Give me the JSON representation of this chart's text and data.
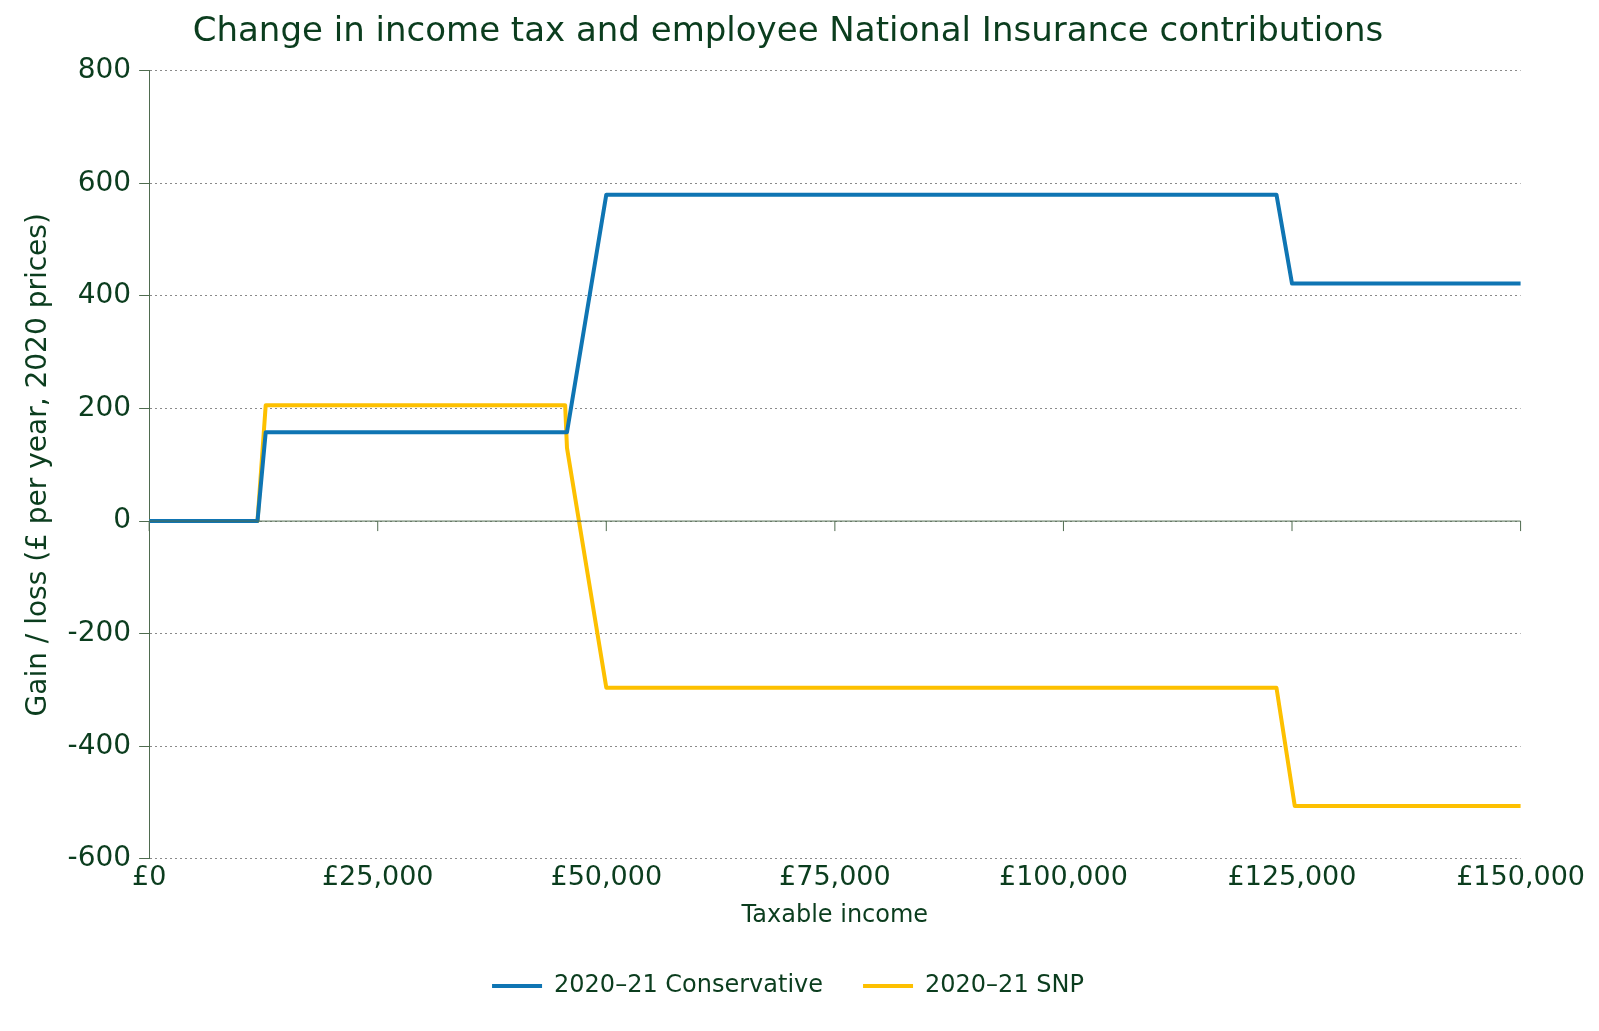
{
  "chart_data": {
    "type": "line",
    "title": "Change in income tax and employee National Insurance contributions",
    "xlabel": "Taxable income",
    "ylabel": "Gain / loss (£ per year, 2020 prices)",
    "series": [
      {
        "name": "2020–21 Conservative",
        "color": "#0f75b3",
        "x": [
          0,
          11850,
          12750,
          45700,
          50000,
          123300,
          125000,
          150000
        ],
        "values": [
          0,
          0,
          158,
          158,
          580,
          580,
          422,
          422
        ]
      },
      {
        "name": "2020–21 SNP",
        "color": "#fdc000",
        "x": [
          0,
          11850,
          12750,
          45500,
          45700,
          50000,
          123300,
          125300,
          150000
        ],
        "values": [
          0,
          0,
          206,
          206,
          130,
          -296,
          -296,
          -506,
          -506
        ]
      }
    ],
    "xlim": [
      0,
      150000
    ],
    "xticks": [
      {
        "value": 0,
        "label": "£0"
      },
      {
        "value": 25000,
        "label": "£25,000"
      },
      {
        "value": 50000,
        "label": "£50,000"
      },
      {
        "value": 75000,
        "label": "£75,000"
      },
      {
        "value": 100000,
        "label": "£100,000"
      },
      {
        "value": 125000,
        "label": "£125,000"
      },
      {
        "value": 150000,
        "label": "£150,000"
      }
    ],
    "ylim": [
      -600,
      800
    ],
    "yticks": [
      -600,
      -400,
      -200,
      0,
      200,
      400,
      600,
      800
    ],
    "grid": "y",
    "legend": "bottom",
    "marker": "none",
    "line_style": "solid"
  }
}
